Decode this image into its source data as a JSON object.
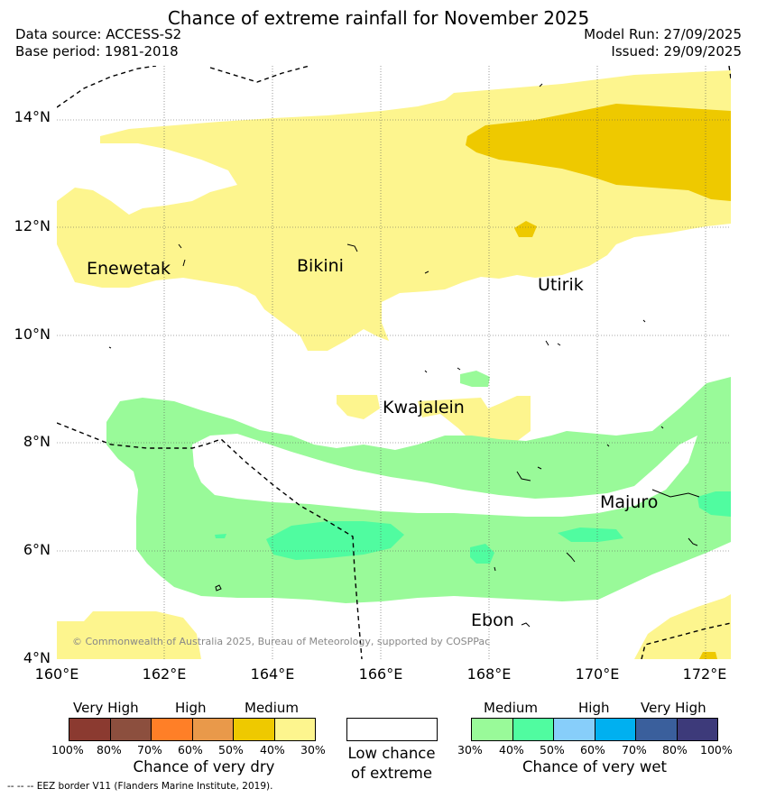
{
  "title": "Chance of extreme rainfall for November 2025",
  "data_source": "Data source: ACCESS-S2",
  "base_period": "Base period: 1981-2018",
  "model_run": "Model Run: 27/09/2025",
  "issued": "Issued: 29/09/2025",
  "map": {
    "lat_labels": [
      "14°N",
      "12°N",
      "10°N",
      "8°N",
      "6°N",
      "4°N"
    ],
    "lon_labels": [
      "160°E",
      "162°E",
      "164°E",
      "166°E",
      "168°E",
      "170°E",
      "172°E"
    ],
    "places": [
      {
        "name": "Enewetak"
      },
      {
        "name": "Bikini"
      },
      {
        "name": "Utirik"
      },
      {
        "name": "Kwajalein"
      },
      {
        "name": "Majuro"
      },
      {
        "name": "Ebon"
      }
    ],
    "copyright": "© Commonwealth of Australia 2025, Bureau of Meteorology, supported by COSPPac"
  },
  "legend": {
    "dry": {
      "categories": [
        "Very High",
        "High",
        "Medium"
      ],
      "colors": [
        "#8b3a30",
        "#8c4f3e",
        "#ff7f27",
        "#e9994a",
        "#eec900",
        "#fdf58e"
      ],
      "ticks": [
        "100%",
        "80%",
        "70%",
        "60%",
        "50%",
        "40%",
        "30%"
      ],
      "title": "Chance of very dry"
    },
    "neutral": {
      "color": "#ffffff",
      "title_line1": "Low chance",
      "title_line2": "of extreme"
    },
    "wet": {
      "categories": [
        "Medium",
        "High",
        "Very High"
      ],
      "colors": [
        "#99fa99",
        "#50fca0",
        "#87cefa",
        "#00b0f0",
        "#3a5f9c",
        "#3d3a7a"
      ],
      "ticks": [
        "30%",
        "40%",
        "50%",
        "60%",
        "70%",
        "80%",
        "100%"
      ],
      "title": "Chance of very wet"
    },
    "eez_note": "-- -- -- EEZ border V11 (Flanders Marine Institute, 2019)."
  }
}
